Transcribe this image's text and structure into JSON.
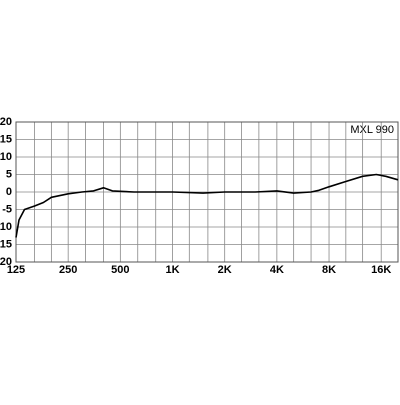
{
  "chart_data": {
    "type": "line",
    "title": "MXL 990",
    "x_scale": "log",
    "xlim": [
      125,
      20000
    ],
    "xticks": [
      {
        "value": 125,
        "label": "125"
      },
      {
        "value": 250,
        "label": "250"
      },
      {
        "value": 500,
        "label": "500"
      },
      {
        "value": 1000,
        "label": "1K"
      },
      {
        "value": 2000,
        "label": "2K"
      },
      {
        "value": 4000,
        "label": "4K"
      },
      {
        "value": 8000,
        "label": "8K"
      },
      {
        "value": 16000,
        "label": "16K"
      }
    ],
    "x_minor_ticks": [
      160,
      200,
      315,
      400,
      630,
      800,
      1250,
      1600,
      2500,
      3150,
      5000,
      6300,
      10000,
      12500
    ],
    "ylim": [
      -20,
      20
    ],
    "yticks": [
      20,
      15,
      10,
      5,
      0,
      -5,
      -10,
      -15,
      -20
    ],
    "grid": true,
    "series": [
      {
        "color": "#000000",
        "x": [
          125,
          130,
          140,
          160,
          180,
          200,
          250,
          300,
          350,
          400,
          450,
          600,
          1000,
          1500,
          2000,
          3000,
          4000,
          5000,
          6300,
          7000,
          8000,
          10000,
          12500,
          15000,
          17000,
          20000
        ],
        "values": [
          -13,
          -8,
          -5,
          -4,
          -3,
          -1.5,
          -0.5,
          0,
          0.3,
          1.2,
          0.3,
          0,
          0,
          -0.3,
          0,
          0,
          0.3,
          -0.3,
          0,
          0.5,
          1.5,
          3,
          4.5,
          5,
          4.5,
          3.5
        ]
      }
    ]
  }
}
